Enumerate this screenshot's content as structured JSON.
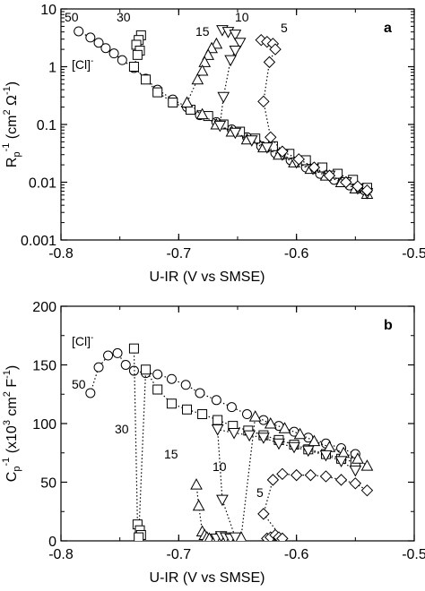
{
  "chart_data": [
    {
      "panel": "a",
      "type": "scatter",
      "xlabel": "U-IR (V vs SMSE)",
      "ylabel": "R",
      "ylabel_sub": "p",
      "ylabel_sup": "-1",
      "ylabel_units_pre": " (cm",
      "ylabel_units_sup1": "2",
      "ylabel_units_mid": " Ω",
      "ylabel_units_sup2": "-1",
      "ylabel_units_post": ")",
      "xlim": [
        -0.8,
        -0.5
      ],
      "ylim": [
        0.001,
        10
      ],
      "yscale": "log",
      "xticks": [
        "-0.8",
        "-0.7",
        "-0.6",
        "-0.5"
      ],
      "yticks": [
        "0.001",
        "0.01",
        "0.1",
        "1",
        "10"
      ],
      "annotation": "[Cl]",
      "annotation_sup": "-",
      "series": [
        {
          "name": "50",
          "marker": "circle",
          "x": [
            -0.785,
            -0.775,
            -0.768,
            -0.762,
            -0.755,
            -0.748,
            -0.738,
            -0.728,
            -0.718,
            -0.705,
            -0.693,
            -0.682,
            -0.668,
            -0.655,
            -0.642,
            -0.63,
            -0.618,
            -0.605,
            -0.592,
            -0.58,
            -0.568,
            -0.555,
            -0.542
          ],
          "y": [
            4.1,
            3.2,
            2.6,
            2.1,
            1.7,
            1.3,
            0.95,
            0.62,
            0.4,
            0.27,
            0.2,
            0.145,
            0.11,
            0.082,
            0.06,
            0.042,
            0.032,
            0.024,
            0.018,
            0.014,
            0.011,
            0.0088,
            0.0072
          ]
        },
        {
          "name": "30",
          "marker": "square",
          "x": [
            -0.732,
            -0.734,
            -0.736,
            -0.733,
            -0.735,
            -0.738,
            -0.728,
            -0.718,
            -0.705,
            -0.69,
            -0.675,
            -0.662,
            -0.648,
            -0.635,
            -0.62,
            -0.606,
            -0.592,
            -0.578,
            -0.565,
            -0.552,
            -0.54
          ],
          "y": [
            3.5,
            2.9,
            2.4,
            1.9,
            1.6,
            1.0,
            0.6,
            0.36,
            0.24,
            0.18,
            0.14,
            0.1,
            0.075,
            0.057,
            0.042,
            0.031,
            0.024,
            0.018,
            0.014,
            0.011,
            0.008
          ]
        },
        {
          "name": "15",
          "marker": "triangle-up",
          "x": [
            -0.668,
            -0.672,
            -0.675,
            -0.678,
            -0.68,
            -0.684,
            -0.693,
            -0.68,
            -0.668,
            -0.655,
            -0.642,
            -0.628,
            -0.615,
            -0.602,
            -0.588,
            -0.575,
            -0.562,
            -0.55,
            -0.54
          ],
          "y": [
            2.5,
            2.1,
            1.6,
            1.2,
            0.85,
            0.6,
            0.24,
            0.15,
            0.1,
            0.075,
            0.055,
            0.04,
            0.03,
            0.022,
            0.017,
            0.013,
            0.01,
            0.0078,
            0.0063
          ]
        },
        {
          "name": "10",
          "marker": "triangle-down",
          "x": [
            -0.663,
            -0.658,
            -0.652,
            -0.648,
            -0.652,
            -0.656,
            -0.662,
            -0.665,
            -0.652,
            -0.638,
            -0.625,
            -0.612,
            -0.6,
            -0.586,
            -0.572,
            -0.558,
            -0.548,
            -0.54
          ],
          "y": [
            4.3,
            4.0,
            3.6,
            2.6,
            1.9,
            1.3,
            0.3,
            0.095,
            0.072,
            0.053,
            0.04,
            0.03,
            0.022,
            0.017,
            0.013,
            0.01,
            0.0078,
            0.0065
          ]
        },
        {
          "name": "5",
          "marker": "diamond",
          "x": [
            -0.63,
            -0.625,
            -0.62,
            -0.618,
            -0.623,
            -0.628,
            -0.622,
            -0.612,
            -0.598,
            -0.585,
            -0.572,
            -0.558,
            -0.548,
            -0.54
          ],
          "y": [
            2.9,
            2.7,
            2.5,
            2.0,
            1.2,
            0.25,
            0.06,
            0.034,
            0.025,
            0.018,
            0.013,
            0.01,
            0.0085,
            0.0072
          ]
        }
      ]
    },
    {
      "panel": "b",
      "type": "scatter",
      "xlabel": "U-IR (V vs SMSE)",
      "ylabel": "C",
      "ylabel_sub": "p",
      "ylabel_sup": "-1",
      "ylabel_units_pre": " (x10",
      "ylabel_units_sup1": "3",
      "ylabel_units_mid": " cm",
      "ylabel_units_sup2": "2",
      "ylabel_units_post3": " F",
      "ylabel_units_sup3": "-1",
      "ylabel_units_post": ")",
      "xlim": [
        -0.8,
        -0.5
      ],
      "ylim": [
        0,
        200
      ],
      "yscale": "linear",
      "xticks": [
        "-0.8",
        "-0.7",
        "-0.6",
        "-0.5"
      ],
      "yticks": [
        "0",
        "50",
        "100",
        "150",
        "200"
      ],
      "annotation": "[Cl]",
      "annotation_sup": "-",
      "series": [
        {
          "name": "50",
          "marker": "circle",
          "x": [
            -0.775,
            -0.768,
            -0.76,
            -0.752,
            -0.745,
            -0.738,
            -0.728,
            -0.718,
            -0.706,
            -0.694,
            -0.682,
            -0.668,
            -0.655,
            -0.642,
            -0.628,
            -0.615,
            -0.602,
            -0.59,
            -0.575,
            -0.562,
            -0.55
          ],
          "y": [
            126,
            148,
            158,
            160,
            150,
            145,
            143,
            142,
            138,
            133,
            126,
            120,
            114,
            108,
            103,
            98,
            93,
            88,
            83,
            79,
            74
          ]
        },
        {
          "name": "30",
          "marker": "square",
          "x": [
            -0.738,
            -0.735,
            -0.733,
            -0.732,
            -0.734,
            -0.728,
            -0.718,
            -0.706,
            -0.693,
            -0.68,
            -0.667,
            -0.654,
            -0.641,
            -0.628,
            -0.615,
            -0.602,
            -0.59,
            -0.575,
            -0.562,
            -0.55
          ],
          "y": [
            164,
            14,
            9,
            5,
            3,
            146,
            129,
            117,
            112,
            108,
            103,
            98,
            94,
            90,
            86,
            82,
            78,
            74,
            70,
            67
          ]
        },
        {
          "name": "15",
          "marker": "triangle-up",
          "x": [
            -0.685,
            -0.683,
            -0.68,
            -0.678,
            -0.676,
            -0.674,
            -0.668,
            -0.66,
            -0.647,
            -0.635,
            -0.622,
            -0.61,
            -0.597,
            -0.585,
            -0.572,
            -0.56,
            -0.548,
            -0.54
          ],
          "y": [
            48,
            30,
            8,
            5,
            3,
            2,
            3,
            2,
            3,
            106,
            100,
            96,
            91,
            85,
            80,
            75,
            70,
            64
          ]
        },
        {
          "name": "10",
          "marker": "triangle-down",
          "x": [
            -0.668,
            -0.664,
            -0.66,
            -0.656,
            -0.652,
            -0.663,
            -0.667,
            -0.653,
            -0.64,
            -0.628,
            -0.615,
            -0.602,
            -0.59,
            -0.575,
            -0.562,
            -0.55
          ],
          "y": [
            2,
            4,
            3,
            2,
            3,
            35,
            95,
            92,
            90,
            88,
            83,
            80,
            77,
            73,
            68,
            60
          ]
        },
        {
          "name": "5",
          "marker": "diamond",
          "x": [
            -0.625,
            -0.622,
            -0.618,
            -0.615,
            -0.612,
            -0.628,
            -0.62,
            -0.612,
            -0.6,
            -0.588,
            -0.575,
            -0.562,
            -0.55,
            -0.54
          ],
          "y": [
            2,
            3,
            5,
            3,
            2,
            23,
            52,
            57,
            56,
            56,
            55,
            52,
            49,
            43
          ]
        }
      ]
    }
  ],
  "panel_labels": {
    "a": "a",
    "b": "b"
  },
  "series_labels": [
    "50",
    "30",
    "15",
    "10",
    "5"
  ]
}
